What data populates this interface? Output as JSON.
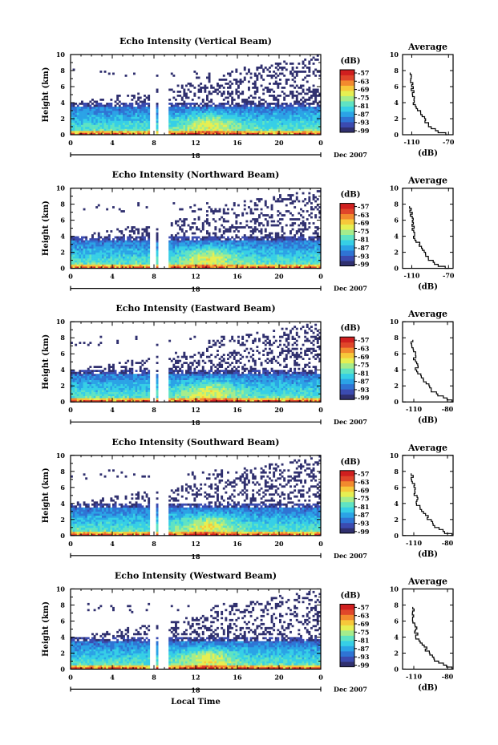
{
  "figure": {
    "xlabel": "Local Time",
    "ylabel": "Height (km)",
    "date_label": "Dec 2007",
    "day_label": "18",
    "colorbar_label": "(dB)",
    "avg_title": "Average",
    "avg_xlabel": "(dB)"
  },
  "colors": {
    "scale": [
      "#30306f",
      "#3b4bb0",
      "#2f74d4",
      "#2ba3e6",
      "#36cfe6",
      "#5fe3c3",
      "#a5ec8c",
      "#e6ef52",
      "#f7c83a",
      "#f28a2e",
      "#e0462a",
      "#d01f1f"
    ]
  },
  "chart_data": [
    {
      "type": "heatmap",
      "title": "Echo Intensity (Vertical Beam)",
      "xlabel": "",
      "ylabel": "Height (km)",
      "xlim": [
        0,
        24
      ],
      "ylim": [
        0,
        10
      ],
      "xticks": [
        "0",
        "4",
        "8",
        "12",
        "16",
        "20",
        "0"
      ],
      "yticks": [
        "0",
        "2",
        "4",
        "6",
        "8",
        "10"
      ],
      "colorbar": {
        "label": "(dB)",
        "ticks": [
          "-57",
          "-63",
          "-69",
          "-75",
          "-81",
          "-87",
          "-93",
          "-99"
        ]
      },
      "data_gap_hours": [
        [
          7.6,
          8.1
        ],
        [
          8.4,
          9.3
        ]
      ],
      "echo_top_km": 4,
      "average": {
        "title": "Average",
        "xlabel": "(dB)",
        "xticks": [
          "-110",
          "-70"
        ],
        "xlim": [
          -120,
          -65
        ],
        "ylim": [
          0,
          10
        ]
      }
    },
    {
      "type": "heatmap",
      "title": "Echo Intensity (Northward Beam)",
      "xlabel": "",
      "ylabel": "Height (km)",
      "xlim": [
        0,
        24
      ],
      "ylim": [
        0,
        10
      ],
      "xticks": [
        "0",
        "4",
        "8",
        "12",
        "16",
        "20",
        "0"
      ],
      "yticks": [
        "0",
        "2",
        "4",
        "6",
        "8",
        "10"
      ],
      "colorbar": {
        "label": "(dB)",
        "ticks": [
          "-57",
          "-63",
          "-69",
          "-75",
          "-81",
          "-87",
          "-93",
          "-99"
        ]
      },
      "data_gap_hours": [
        [
          7.6,
          8.1
        ],
        [
          8.4,
          9.3
        ]
      ],
      "echo_top_km": 4,
      "average": {
        "title": "Average",
        "xlabel": "(dB)",
        "xticks": [
          "-110",
          "-70"
        ],
        "xlim": [
          -120,
          -65
        ],
        "ylim": [
          0,
          10
        ]
      }
    },
    {
      "type": "heatmap",
      "title": "Echo Intensity (Eastward Beam)",
      "xlabel": "",
      "ylabel": "Height (km)",
      "xlim": [
        0,
        24
      ],
      "ylim": [
        0,
        10
      ],
      "xticks": [
        "0",
        "4",
        "8",
        "12",
        "16",
        "20",
        "0"
      ],
      "yticks": [
        "0",
        "2",
        "4",
        "6",
        "8",
        "10"
      ],
      "colorbar": {
        "label": "(dB)",
        "ticks": [
          "-57",
          "-63",
          "-69",
          "-75",
          "-81",
          "-87",
          "-93",
          "-99"
        ]
      },
      "data_gap_hours": [
        [
          7.6,
          8.1
        ],
        [
          8.4,
          9.3
        ]
      ],
      "echo_top_km": 4,
      "average": {
        "title": "Average",
        "xlabel": "(dB)",
        "xticks": [
          "-110",
          "-80"
        ],
        "xlim": [
          -120,
          -75
        ],
        "ylim": [
          0,
          10
        ]
      }
    },
    {
      "type": "heatmap",
      "title": "Echo Intensity (Southward Beam)",
      "xlabel": "",
      "ylabel": "Height (km)",
      "xlim": [
        0,
        24
      ],
      "ylim": [
        0,
        10
      ],
      "xticks": [
        "0",
        "4",
        "8",
        "12",
        "16",
        "20",
        "0"
      ],
      "yticks": [
        "0",
        "2",
        "4",
        "6",
        "8",
        "10"
      ],
      "colorbar": {
        "label": "(dB)",
        "ticks": [
          "-57",
          "-63",
          "-69",
          "-75",
          "-81",
          "-87",
          "-93",
          "-99"
        ]
      },
      "data_gap_hours": [
        [
          7.6,
          8.1
        ],
        [
          8.4,
          9.3
        ]
      ],
      "echo_top_km": 4,
      "average": {
        "title": "Average",
        "xlabel": "(dB)",
        "xticks": [
          "-110",
          "-80"
        ],
        "xlim": [
          -120,
          -75
        ],
        "ylim": [
          0,
          10
        ]
      }
    },
    {
      "type": "heatmap",
      "title": "Echo Intensity (Westward Beam)",
      "xlabel": "Local Time",
      "ylabel": "Height (km)",
      "xlim": [
        0,
        24
      ],
      "ylim": [
        0,
        10
      ],
      "xticks": [
        "0",
        "4",
        "8",
        "12",
        "16",
        "20",
        "0"
      ],
      "yticks": [
        "0",
        "2",
        "4",
        "6",
        "8",
        "10"
      ],
      "colorbar": {
        "label": "(dB)",
        "ticks": [
          "-57",
          "-63",
          "-69",
          "-75",
          "-81",
          "-87",
          "-93",
          "-99"
        ]
      },
      "data_gap_hours": [
        [
          7.6,
          8.1
        ],
        [
          8.4,
          9.3
        ]
      ],
      "echo_top_km": 4,
      "average": {
        "title": "Average",
        "xlabel": "(dB)",
        "xticks": [
          "-110",
          "-80"
        ],
        "xlim": [
          -120,
          -75
        ],
        "ylim": [
          0,
          10
        ]
      }
    }
  ]
}
